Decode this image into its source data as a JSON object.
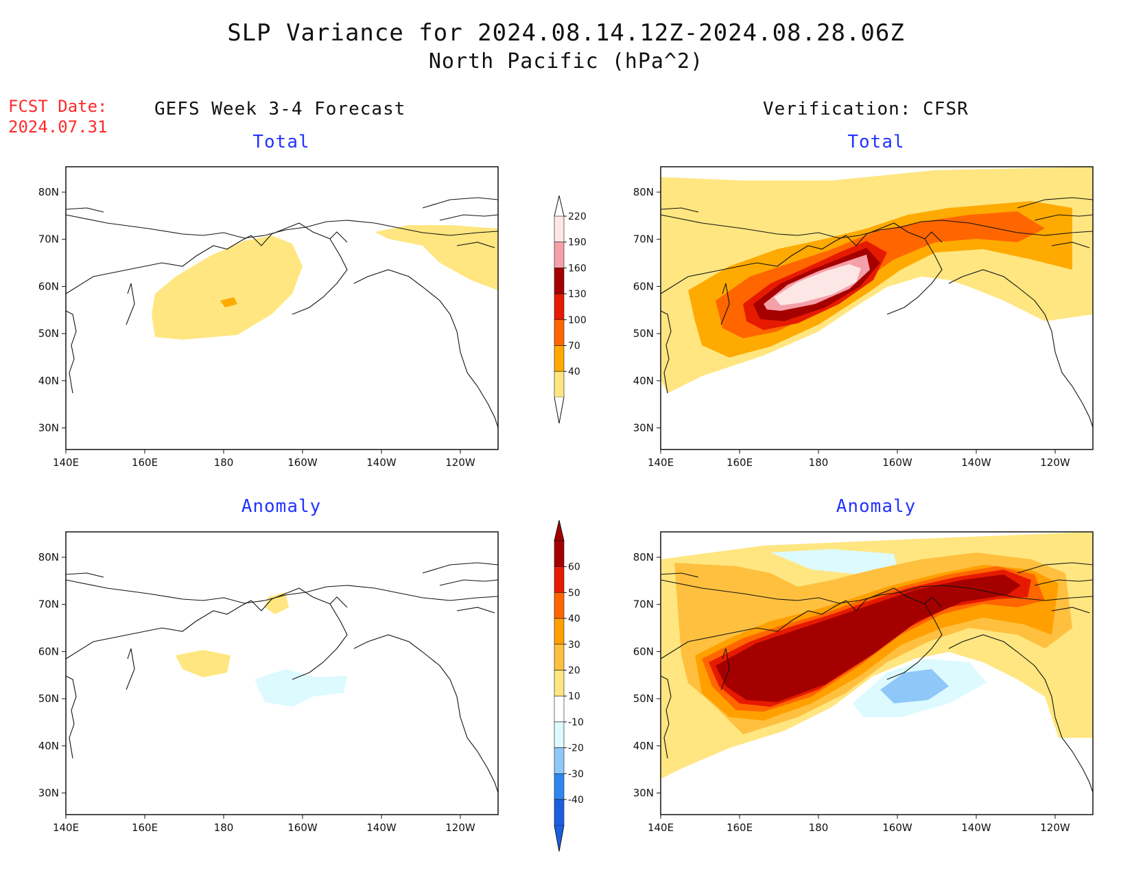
{
  "header": {
    "line1": "SLP Variance for 2024.08.14.12Z-2024.08.28.06Z",
    "line2": "North Pacific (hPa^2)"
  },
  "fcst": {
    "line1": "FCST Date:",
    "line2": "2024.07.31"
  },
  "columns": {
    "left": "GEFS Week 3-4 Forecast",
    "right": "Verification: CFSR"
  },
  "panels": {
    "forecast_total": {
      "title": "Total"
    },
    "forecast_anomaly": {
      "title": "Anomaly"
    },
    "verification_total": {
      "title": "Total"
    },
    "verification_anomaly": {
      "title": "Anomaly"
    }
  },
  "axes": {
    "lon_ticks": [
      "140E",
      "160E",
      "180",
      "160W",
      "140W",
      "120W"
    ],
    "lat_ticks": [
      "80N",
      "70N",
      "60N",
      "50N",
      "40N",
      "30N"
    ]
  },
  "colorbars": {
    "total": {
      "levels": [
        "40",
        "70",
        "100",
        "130",
        "160",
        "190",
        "220"
      ],
      "colors": [
        "#ffe680",
        "#ffaa00",
        "#ff6600",
        "#e61a00",
        "#a50000",
        "#f4a0a8",
        "#fde6e6"
      ]
    },
    "anomaly": {
      "levels": [
        "-40",
        "-30",
        "-20",
        "-10",
        "10",
        "20",
        "30",
        "40",
        "50",
        "60"
      ],
      "colors": [
        "#1a5fe0",
        "#2f86f0",
        "#8fc8f8",
        "#ddfafe",
        "#ffffff",
        "#ffe680",
        "#ffc040",
        "#ffa000",
        "#ff6600",
        "#e61a00",
        "#a50000"
      ]
    }
  },
  "fill_colors": {
    "c40": "#ffe680",
    "c70": "#ffaa00",
    "c100": "#ff6600",
    "c130": "#e61a00",
    "c160": "#a50000",
    "c190": "#f4a0a8",
    "c220": "#fde6e6",
    "a10": "#ffe680",
    "a20": "#ffc040",
    "a30": "#ffa000",
    "a40": "#ff6600",
    "a50": "#e61a00",
    "a60": "#a50000",
    "am10": "#ddfafe",
    "am20": "#8fc8f8"
  }
}
